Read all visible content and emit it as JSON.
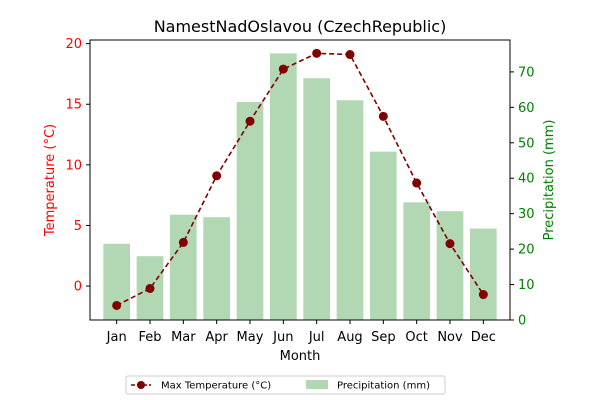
{
  "chart_data": {
    "type": "bar+line",
    "title": "NamestNadOslavou (CzechRepublic)",
    "xlabel": "Month",
    "ylabel_left": "Temperature (°C)",
    "ylabel_right": "Precipitation (mm)",
    "categories": [
      "Jan",
      "Feb",
      "Mar",
      "Apr",
      "May",
      "Jun",
      "Jul",
      "Aug",
      "Sep",
      "Oct",
      "Nov",
      "Dec"
    ],
    "temperature": {
      "name": "Max Temperature (°C)",
      "values": [
        -1.6,
        -0.2,
        3.6,
        9.1,
        13.6,
        17.9,
        19.2,
        19.1,
        14.0,
        8.5,
        3.5,
        -0.7
      ],
      "color": "#800000",
      "axis": "left"
    },
    "precipitation": {
      "name": "Precipitation (mm)",
      "values": [
        21.5,
        18.0,
        29.7,
        29.0,
        61.5,
        75.2,
        68.2,
        62.0,
        47.5,
        33.2,
        30.7,
        25.8
      ],
      "color": "#b1d8b3",
      "axis": "right"
    },
    "ylim_left": [
      -2.8,
      20.3
    ],
    "ylim_right": [
      0,
      79
    ],
    "yticks_left": [
      0,
      5,
      10,
      15,
      20
    ],
    "yticks_right": [
      0,
      10,
      20,
      30,
      40,
      50,
      60,
      70
    ],
    "left_axis_color": "#ff0000",
    "right_axis_color": "#008000",
    "grid": false,
    "legend_placement": "bottom-center"
  }
}
